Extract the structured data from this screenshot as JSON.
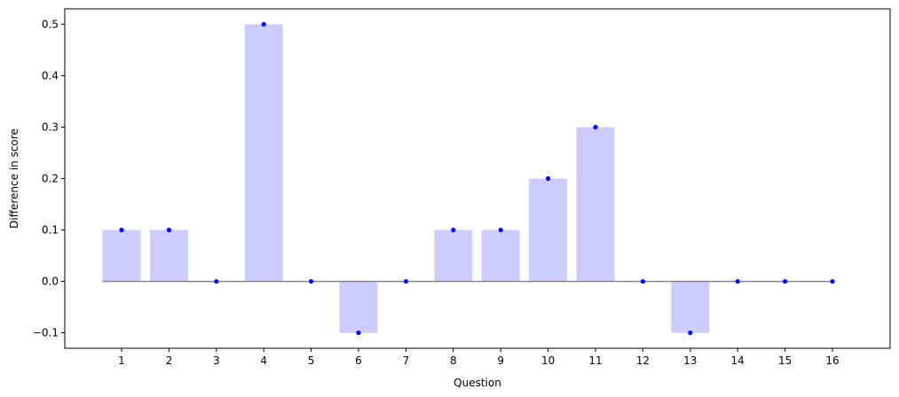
{
  "chart_data": {
    "type": "bar",
    "categories": [
      "1",
      "2",
      "3",
      "4",
      "5",
      "6",
      "7",
      "8",
      "9",
      "10",
      "11",
      "12",
      "13",
      "14",
      "15",
      "16"
    ],
    "values": [
      0.1,
      0.1,
      0.0,
      0.5,
      0.0,
      -0.1,
      0.0,
      0.1,
      0.1,
      0.2,
      0.3,
      0.0,
      -0.1,
      0.0,
      0.0,
      0.0
    ],
    "xlabel": "Question",
    "ylabel": "Difference in score",
    "ylim": [
      -0.13,
      0.53
    ],
    "yticks": [
      -0.1,
      0.0,
      0.1,
      0.2,
      0.3,
      0.4,
      0.5
    ],
    "ytick_labels": [
      "−0.1",
      "0.0",
      "0.1",
      "0.2",
      "0.3",
      "0.4",
      "0.5"
    ],
    "grid": false,
    "bar_color": "#ccccff",
    "point_color": "#0000ff",
    "zero_line_color": "#808080"
  }
}
